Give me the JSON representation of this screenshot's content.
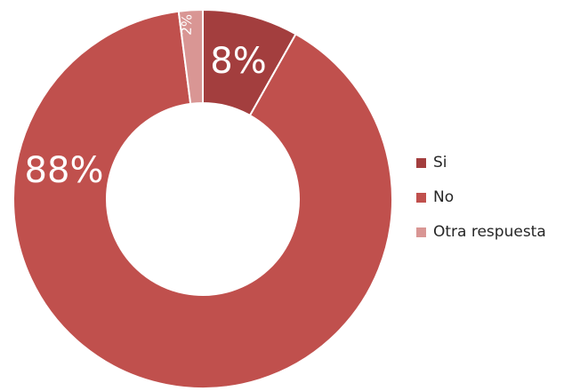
{
  "chart_data": {
    "type": "pie",
    "style": "donut",
    "title": "",
    "categories": [
      "Si",
      "No",
      "Otra respuesta"
    ],
    "values": [
      8,
      88,
      2
    ],
    "labels": [
      "8%",
      "88%",
      "2%"
    ],
    "colors": [
      "#a33e3e",
      "#c0504d",
      "#d99694"
    ],
    "legend_position": "right",
    "legend": [
      {
        "label": "Si",
        "color": "#a33e3e"
      },
      {
        "label": "No",
        "color": "#c0504d"
      },
      {
        "label": "Otra respuesta",
        "color": "#d99694"
      }
    ]
  }
}
